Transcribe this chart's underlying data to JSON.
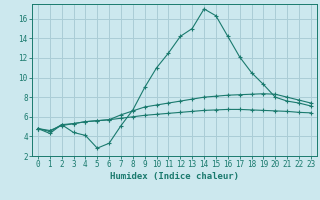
{
  "xlabel": "Humidex (Indice chaleur)",
  "x_values": [
    0,
    1,
    2,
    3,
    4,
    5,
    6,
    7,
    8,
    9,
    10,
    11,
    12,
    13,
    14,
    15,
    16,
    17,
    18,
    19,
    20,
    21,
    22,
    23
  ],
  "line1_y": [
    4.8,
    4.3,
    5.2,
    4.4,
    4.1,
    2.8,
    3.3,
    5.1,
    6.7,
    9.0,
    11.0,
    12.5,
    14.2,
    15.0,
    17.0,
    16.3,
    14.2,
    12.1,
    10.5,
    9.3,
    8.0,
    7.6,
    7.4,
    7.1
  ],
  "line2_y": [
    4.8,
    4.5,
    5.2,
    5.3,
    5.5,
    5.6,
    5.7,
    6.2,
    6.6,
    7.0,
    7.2,
    7.4,
    7.6,
    7.8,
    8.0,
    8.1,
    8.2,
    8.25,
    8.3,
    8.35,
    8.3,
    8.0,
    7.7,
    7.4
  ],
  "line3_y": [
    4.8,
    4.6,
    5.1,
    5.3,
    5.5,
    5.6,
    5.7,
    5.85,
    6.0,
    6.15,
    6.25,
    6.35,
    6.45,
    6.55,
    6.65,
    6.7,
    6.75,
    6.75,
    6.7,
    6.65,
    6.6,
    6.55,
    6.45,
    6.4
  ],
  "line_color": "#1a7a6e",
  "bg_color": "#cce8ee",
  "grid_color": "#aacdd6",
  "ylim": [
    2,
    17.5
  ],
  "xlim": [
    -0.5,
    23.5
  ],
  "yticks": [
    2,
    4,
    6,
    8,
    10,
    12,
    14,
    16
  ],
  "xticks": [
    0,
    1,
    2,
    3,
    4,
    5,
    6,
    7,
    8,
    9,
    10,
    11,
    12,
    13,
    14,
    15,
    16,
    17,
    18,
    19,
    20,
    21,
    22,
    23
  ],
  "marker": "+"
}
